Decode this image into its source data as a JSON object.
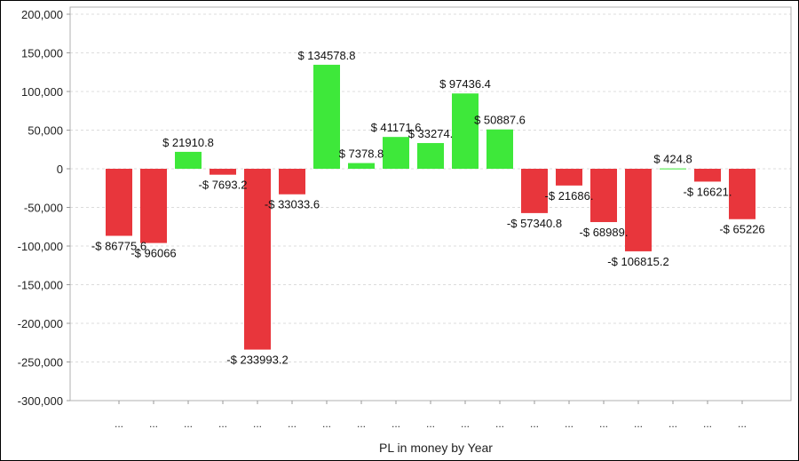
{
  "chart_data": {
    "type": "bar",
    "title": "",
    "xlabel": "PL in money by Year",
    "ylabel": "",
    "ylim": [
      -300000,
      200000
    ],
    "yticks": [
      200000,
      150000,
      100000,
      50000,
      0,
      -50000,
      -100000,
      -150000,
      -200000,
      -250000,
      -300000
    ],
    "ytick_labels": [
      "200,000",
      "150,000",
      "100,000",
      "50,000",
      "0",
      "-50,000",
      "-100,000",
      "-150,000",
      "-200,000",
      "-250,000",
      "-300,000"
    ],
    "grid": true,
    "categories": [
      "...",
      "...",
      "...",
      "...",
      "...",
      "...",
      "...",
      "...",
      "...",
      "...",
      "...",
      "...",
      "...",
      "...",
      "...",
      "...",
      "...",
      "...",
      "..."
    ],
    "values": [
      -86775.6,
      -96066,
      21910.8,
      -7693.2,
      -233993.2,
      -33033.6,
      134578.8,
      7378.8,
      41171.6,
      33274,
      97436.4,
      50887.6,
      -57340.8,
      -21686,
      -68989,
      -106815.2,
      424.8,
      -16621,
      -65226
    ],
    "data_labels": [
      "-$ 86775.6",
      "-$ 96066",
      "$ 21910.8",
      "-$ 7693.2",
      "-$ 233993.2",
      "-$ 33033.6",
      "$ 134578.8",
      "$ 7378.8",
      "$ 41171.6",
      "$ 33274.",
      "$ 97436.4",
      "$ 50887.6",
      "-$ 57340.8",
      "-$ 21686.",
      "-$ 68989.",
      "-$ 106815.2",
      "$ 424.8",
      "-$ 16621.",
      "-$ 65226"
    ],
    "colors": {
      "positive": "#3ee83a",
      "negative": "#e8363c"
    }
  }
}
